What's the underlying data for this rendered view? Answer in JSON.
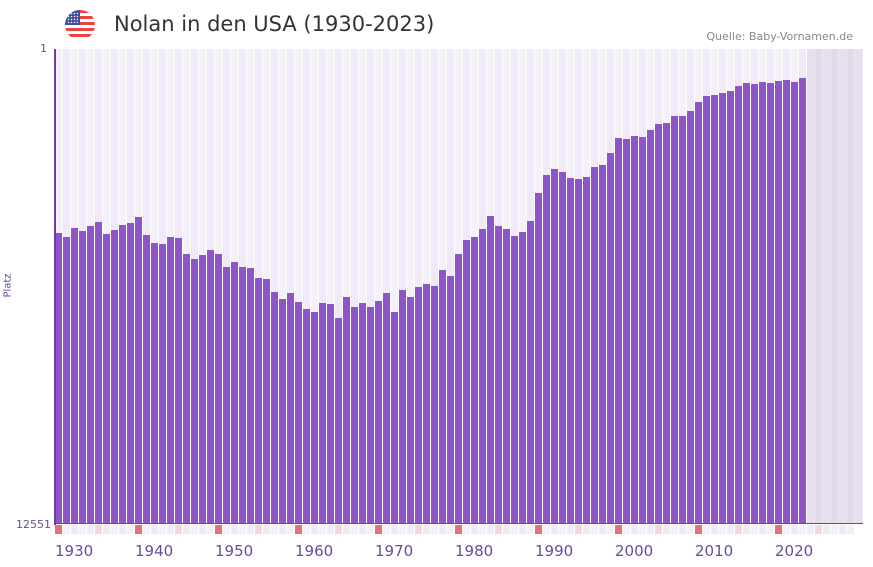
{
  "header": {
    "title": "Nolan in den USA (1930-2023)",
    "source": "Quelle: Baby-Vornamen.de",
    "flag_icon": "usa-flag-icon"
  },
  "colors": {
    "bar": "#8e55c7",
    "decade_marker": "#e8707a",
    "half_decade_marker": "#f5d5dc",
    "axis": "#6a3fa8"
  },
  "chart_data": {
    "type": "bar",
    "title": "Nolan in den USA (1930-2023)",
    "xlabel": "",
    "ylabel": "Platz",
    "y_scale": "sqrt",
    "y_inverted": true,
    "ylim": [
      1,
      12551
    ],
    "ytick_labels": [
      "1",
      "12551"
    ],
    "xlim": [
      1930,
      2029
    ],
    "xtick_labels": [
      "1930",
      "1940",
      "1950",
      "1960",
      "1970",
      "1980",
      "1990",
      "2000",
      "2010",
      "2020"
    ],
    "x": [
      1930,
      1931,
      1932,
      1933,
      1934,
      1935,
      1936,
      1937,
      1938,
      1939,
      1940,
      1941,
      1942,
      1943,
      1944,
      1945,
      1946,
      1947,
      1948,
      1949,
      1950,
      1951,
      1952,
      1953,
      1954,
      1955,
      1956,
      1957,
      1958,
      1959,
      1960,
      1961,
      1962,
      1963,
      1964,
      1965,
      1966,
      1967,
      1968,
      1969,
      1970,
      1971,
      1972,
      1973,
      1974,
      1975,
      1976,
      1977,
      1978,
      1979,
      1980,
      1981,
      1982,
      1983,
      1984,
      1985,
      1986,
      1987,
      1988,
      1989,
      1990,
      1991,
      1992,
      1993,
      1994,
      1995,
      1996,
      1997,
      1998,
      1999,
      2000,
      2001,
      2002,
      2003,
      2004,
      2005,
      2006,
      2007,
      2008,
      2009,
      2010,
      2011,
      2012,
      2013,
      2014,
      2015,
      2016,
      2017,
      2018,
      2019,
      2020,
      2021,
      2022,
      2023
    ],
    "values": [
      1878,
      1961,
      1777,
      1837,
      1738,
      1660,
      1898,
      1817,
      1718,
      1679,
      1566,
      1919,
      2088,
      2110,
      1961,
      1982,
      2332,
      2447,
      2355,
      2241,
      2332,
      2637,
      2517,
      2637,
      2662,
      2910,
      2936,
      3278,
      3469,
      3304,
      3553,
      3752,
      3840,
      3581,
      3609,
      4017,
      3414,
      3695,
      3581,
      3695,
      3525,
      3304,
      3840,
      3224,
      3414,
      3143,
      3065,
      3117,
      2710,
      2860,
      2332,
      2024,
      1961,
      1797,
      1547,
      1738,
      1797,
      1940,
      1857,
      1641,
      1149,
      880,
      798,
      838,
      922,
      937,
      908,
      772,
      745,
      599,
      439,
      449,
      419,
      429,
      363,
      311,
      303,
      248,
      248,
      213,
      155,
      122,
      117,
      107,
      98,
      76,
      64,
      68,
      60,
      64,
      57,
      53,
      60,
      47
    ]
  }
}
